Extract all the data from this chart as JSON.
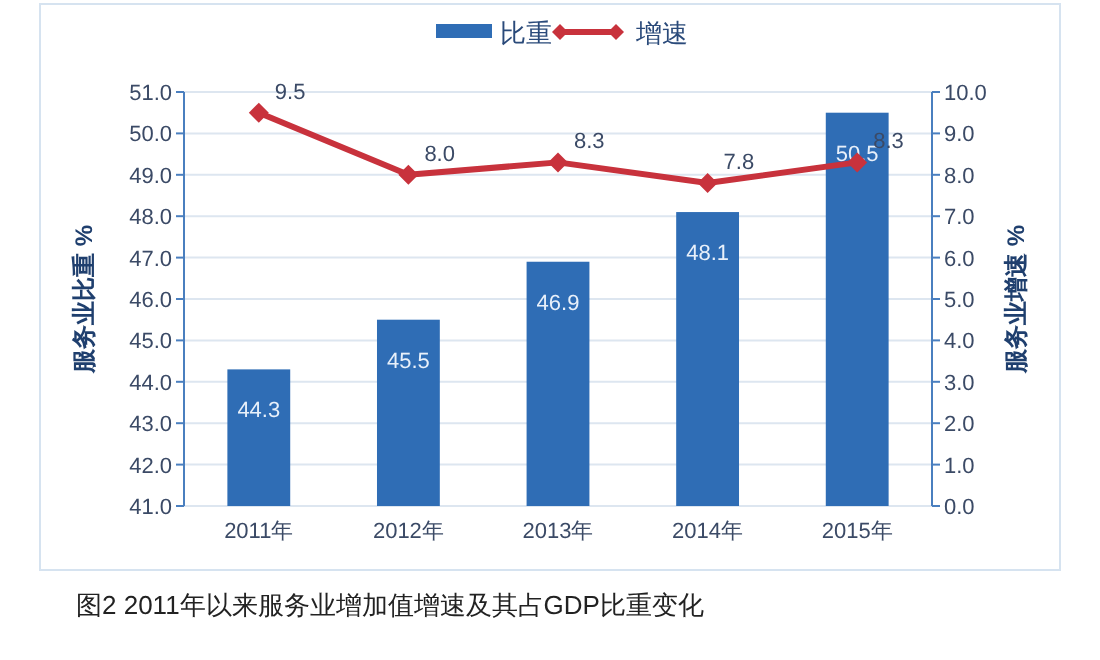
{
  "chart_data": {
    "type": "bar",
    "categories": [
      "2011年",
      "2012年",
      "2013年",
      "2014年",
      "2015年"
    ],
    "series": [
      {
        "name": "比重",
        "color": "#2f6db5",
        "values": [
          44.3,
          45.5,
          46.9,
          48.1,
          50.5
        ],
        "value_labels": [
          "44.3",
          "45.5",
          "46.9",
          "48.1",
          "50.5"
        ]
      },
      {
        "name": "增速",
        "type": "line",
        "axis": "y2",
        "color": "#c8323c",
        "values": [
          9.5,
          8.0,
          8.3,
          7.8,
          8.3
        ],
        "value_labels": [
          "9.5",
          "8.0",
          "8.3",
          "7.8",
          "8.3"
        ]
      }
    ],
    "ylabel": "服务业比重 %",
    "y2label": "服务业增速 %",
    "ylim": [
      41,
      51
    ],
    "yticks": [
      {
        "value": 41,
        "label": "41.0"
      },
      {
        "value": 42,
        "label": "42.0"
      },
      {
        "value": 43,
        "label": "43.0"
      },
      {
        "value": 44,
        "label": "44.0"
      },
      {
        "value": 45,
        "label": "45.0"
      },
      {
        "value": 46,
        "label": "46.0"
      },
      {
        "value": 47,
        "label": "47.0"
      },
      {
        "value": 48,
        "label": "48.0"
      },
      {
        "value": 49,
        "label": "49.0"
      },
      {
        "value": 50,
        "label": "50.0"
      },
      {
        "value": 51,
        "label": "51.0"
      }
    ],
    "y2lim": [
      0,
      10
    ],
    "y2ticks": [
      {
        "value": 0,
        "label": "0.0"
      },
      {
        "value": 1,
        "label": "1.0"
      },
      {
        "value": 2,
        "label": "2.0"
      },
      {
        "value": 3,
        "label": "3.0"
      },
      {
        "value": 4,
        "label": "4.0"
      },
      {
        "value": 5,
        "label": "5.0"
      },
      {
        "value": 6,
        "label": "6.0"
      },
      {
        "value": 7,
        "label": "7.0"
      },
      {
        "value": 8,
        "label": "8.0"
      },
      {
        "value": 9,
        "label": "9.0"
      },
      {
        "value": 10,
        "label": "10.0"
      }
    ],
    "grid": "y",
    "legend": "top",
    "marker": "diamond",
    "annotations": [
      "图2  2011年以来服务业增加值增速及其占GDP比重变化"
    ]
  }
}
